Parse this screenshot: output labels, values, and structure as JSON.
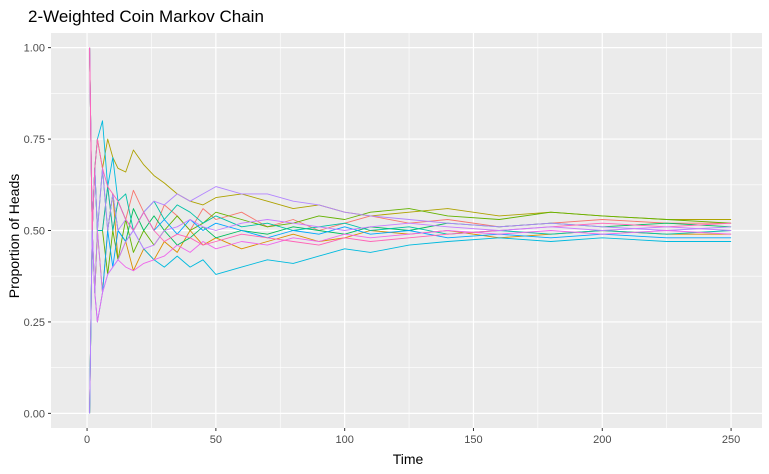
{
  "chart_data": {
    "type": "line",
    "title": "2-Weighted Coin Markov Chain",
    "xlabel": "Time",
    "ylabel": "Proportion of Heads",
    "xlim": [
      -14,
      262
    ],
    "ylim": [
      -0.04,
      1.04
    ],
    "x_ticks": [
      0,
      50,
      100,
      150,
      200,
      250
    ],
    "x_tick_labels": [
      "0",
      "50",
      "100",
      "150",
      "200",
      "250"
    ],
    "y_ticks": [
      0.0,
      0.25,
      0.5,
      0.75,
      1.0
    ],
    "y_tick_labels": [
      "0.00",
      "0.25",
      "0.50",
      "0.75",
      "1.00"
    ],
    "grid": true,
    "legend": "none",
    "panel_color": "#ebebeb",
    "grid_color": "#ffffff",
    "series": [
      {
        "color": "#F8766D",
        "x": [
          1,
          2,
          3,
          4,
          6,
          8,
          10,
          12,
          15,
          18,
          22,
          26,
          30,
          35,
          40,
          45,
          50,
          60,
          70,
          80,
          90,
          100,
          110,
          125,
          140,
          160,
          180,
          200,
          225,
          250
        ],
        "y": [
          1.0,
          0.5,
          0.67,
          0.5,
          0.5,
          0.62,
          0.5,
          0.58,
          0.53,
          0.61,
          0.55,
          0.5,
          0.57,
          0.54,
          0.5,
          0.56,
          0.53,
          0.55,
          0.51,
          0.53,
          0.5,
          0.52,
          0.54,
          0.52,
          0.53,
          0.51,
          0.52,
          0.53,
          0.52,
          0.52
        ]
      },
      {
        "color": "#DB8E00",
        "x": [
          1,
          2,
          3,
          4,
          6,
          8,
          10,
          12,
          15,
          18,
          22,
          26,
          30,
          35,
          40,
          45,
          50,
          60,
          70,
          80,
          90,
          100,
          110,
          125,
          140,
          160,
          180,
          200,
          225,
          250
        ],
        "y": [
          0.0,
          0.5,
          0.33,
          0.5,
          0.33,
          0.5,
          0.6,
          0.42,
          0.47,
          0.39,
          0.45,
          0.42,
          0.47,
          0.44,
          0.5,
          0.46,
          0.48,
          0.45,
          0.47,
          0.49,
          0.47,
          0.48,
          0.5,
          0.49,
          0.5,
          0.48,
          0.49,
          0.5,
          0.49,
          0.49
        ]
      },
      {
        "color": "#AEA200",
        "x": [
          1,
          2,
          3,
          4,
          6,
          8,
          10,
          12,
          15,
          18,
          22,
          26,
          30,
          35,
          40,
          45,
          50,
          60,
          70,
          80,
          90,
          100,
          110,
          125,
          140,
          160,
          180,
          200,
          225,
          250
        ],
        "y": [
          1.0,
          0.5,
          0.67,
          0.75,
          0.67,
          0.75,
          0.7,
          0.67,
          0.66,
          0.72,
          0.68,
          0.65,
          0.63,
          0.6,
          0.58,
          0.57,
          0.59,
          0.6,
          0.58,
          0.56,
          0.57,
          0.55,
          0.54,
          0.55,
          0.56,
          0.54,
          0.55,
          0.54,
          0.53,
          0.53
        ]
      },
      {
        "color": "#64B200",
        "x": [
          1,
          2,
          3,
          4,
          6,
          8,
          10,
          12,
          15,
          18,
          22,
          26,
          30,
          35,
          40,
          45,
          50,
          60,
          70,
          80,
          90,
          100,
          110,
          125,
          140,
          160,
          180,
          200,
          225,
          250
        ],
        "y": [
          0.0,
          0.5,
          0.33,
          0.5,
          0.5,
          0.38,
          0.5,
          0.42,
          0.53,
          0.44,
          0.5,
          0.46,
          0.5,
          0.54,
          0.5,
          0.52,
          0.55,
          0.53,
          0.51,
          0.52,
          0.54,
          0.53,
          0.55,
          0.56,
          0.54,
          0.53,
          0.55,
          0.54,
          0.53,
          0.52
        ]
      },
      {
        "color": "#00BD5C",
        "x": [
          1,
          2,
          3,
          4,
          6,
          8,
          10,
          12,
          15,
          18,
          22,
          26,
          30,
          35,
          40,
          45,
          50,
          60,
          70,
          80,
          90,
          100,
          110,
          125,
          140,
          160,
          180,
          200,
          225,
          250
        ],
        "y": [
          1.0,
          0.5,
          0.67,
          0.5,
          0.67,
          0.5,
          0.6,
          0.5,
          0.47,
          0.56,
          0.5,
          0.54,
          0.5,
          0.46,
          0.48,
          0.51,
          0.48,
          0.5,
          0.49,
          0.51,
          0.5,
          0.49,
          0.51,
          0.5,
          0.52,
          0.51,
          0.52,
          0.51,
          0.52,
          0.51
        ]
      },
      {
        "color": "#00C1A7",
        "x": [
          1,
          2,
          3,
          4,
          6,
          8,
          10,
          12,
          15,
          18,
          22,
          26,
          30,
          35,
          40,
          45,
          50,
          60,
          70,
          80,
          90,
          100,
          110,
          125,
          140,
          160,
          180,
          200,
          225,
          250
        ],
        "y": [
          0.0,
          0.5,
          0.67,
          0.5,
          0.5,
          0.62,
          0.5,
          0.58,
          0.6,
          0.5,
          0.55,
          0.58,
          0.53,
          0.57,
          0.55,
          0.52,
          0.54,
          0.51,
          0.52,
          0.5,
          0.51,
          0.52,
          0.5,
          0.51,
          0.49,
          0.5,
          0.49,
          0.5,
          0.49,
          0.5
        ]
      },
      {
        "color": "#00BADE",
        "x": [
          1,
          2,
          3,
          4,
          6,
          8,
          10,
          12,
          15,
          18,
          22,
          26,
          30,
          35,
          40,
          45,
          50,
          60,
          70,
          80,
          90,
          100,
          110,
          125,
          140,
          160,
          180,
          200,
          225,
          250
        ],
        "y": [
          1.0,
          0.5,
          0.67,
          0.75,
          0.8,
          0.62,
          0.7,
          0.58,
          0.53,
          0.5,
          0.45,
          0.42,
          0.4,
          0.43,
          0.4,
          0.42,
          0.38,
          0.4,
          0.42,
          0.41,
          0.43,
          0.45,
          0.44,
          0.46,
          0.47,
          0.48,
          0.47,
          0.48,
          0.47,
          0.47
        ]
      },
      {
        "color": "#00A6FF",
        "x": [
          1,
          2,
          3,
          4,
          6,
          8,
          10,
          12,
          15,
          18,
          22,
          26,
          30,
          35,
          40,
          45,
          50,
          60,
          70,
          80,
          90,
          100,
          110,
          125,
          140,
          160,
          180,
          200,
          225,
          250
        ],
        "y": [
          0.0,
          0.5,
          0.33,
          0.25,
          0.33,
          0.5,
          0.4,
          0.5,
          0.47,
          0.5,
          0.55,
          0.5,
          0.53,
          0.49,
          0.53,
          0.5,
          0.52,
          0.5,
          0.48,
          0.5,
          0.49,
          0.51,
          0.49,
          0.5,
          0.48,
          0.49,
          0.48,
          0.49,
          0.48,
          0.48
        ]
      },
      {
        "color": "#B385FF",
        "x": [
          1,
          2,
          3,
          4,
          6,
          8,
          10,
          12,
          15,
          18,
          22,
          26,
          30,
          35,
          40,
          45,
          50,
          60,
          70,
          80,
          90,
          100,
          110,
          125,
          140,
          160,
          180,
          200,
          225,
          250
        ],
        "y": [
          1.0,
          0.5,
          0.67,
          0.5,
          0.67,
          0.5,
          0.6,
          0.5,
          0.53,
          0.5,
          0.55,
          0.58,
          0.57,
          0.6,
          0.58,
          0.6,
          0.62,
          0.6,
          0.6,
          0.58,
          0.57,
          0.55,
          0.54,
          0.53,
          0.52,
          0.51,
          0.52,
          0.51,
          0.5,
          0.51
        ]
      },
      {
        "color": "#EF67EB",
        "x": [
          1,
          2,
          3,
          4,
          6,
          8,
          10,
          12,
          15,
          18,
          22,
          26,
          30,
          35,
          40,
          45,
          50,
          60,
          70,
          80,
          90,
          100,
          110,
          125,
          140,
          160,
          180,
          200,
          225,
          250
        ],
        "y": [
          1.0,
          0.5,
          0.33,
          0.25,
          0.33,
          0.38,
          0.4,
          0.42,
          0.4,
          0.39,
          0.41,
          0.42,
          0.43,
          0.46,
          0.44,
          0.47,
          0.45,
          0.47,
          0.46,
          0.48,
          0.47,
          0.49,
          0.48,
          0.49,
          0.5,
          0.49,
          0.5,
          0.49,
          0.5,
          0.49
        ]
      },
      {
        "color": "#FF63B6",
        "x": [
          1,
          2,
          3,
          4,
          6,
          8,
          10,
          12,
          15,
          18,
          22,
          26,
          30,
          35,
          40,
          45,
          50,
          60,
          70,
          80,
          90,
          100,
          110,
          125,
          140,
          160,
          180,
          200,
          225,
          250
        ],
        "y": [
          1.0,
          0.5,
          0.67,
          0.75,
          0.67,
          0.62,
          0.6,
          0.58,
          0.53,
          0.5,
          0.55,
          0.5,
          0.47,
          0.49,
          0.48,
          0.46,
          0.47,
          0.49,
          0.48,
          0.47,
          0.46,
          0.48,
          0.47,
          0.48,
          0.49,
          0.5,
          0.51,
          0.52,
          0.51,
          0.52
        ]
      },
      {
        "color": "#C77CFF",
        "x": [
          1,
          2,
          3,
          4,
          6,
          8,
          10,
          12,
          15,
          18,
          22,
          26,
          30,
          35,
          40,
          45,
          50,
          60,
          70,
          80,
          90,
          100,
          110,
          125,
          140,
          160,
          180,
          200,
          225,
          250
        ],
        "y": [
          0.0,
          0.5,
          0.33,
          0.5,
          0.33,
          0.38,
          0.4,
          0.42,
          0.47,
          0.5,
          0.45,
          0.46,
          0.5,
          0.51,
          0.53,
          0.51,
          0.5,
          0.52,
          0.53,
          0.52,
          0.51,
          0.5,
          0.51,
          0.52,
          0.51,
          0.5,
          0.51,
          0.5,
          0.51,
          0.5
        ]
      }
    ]
  }
}
